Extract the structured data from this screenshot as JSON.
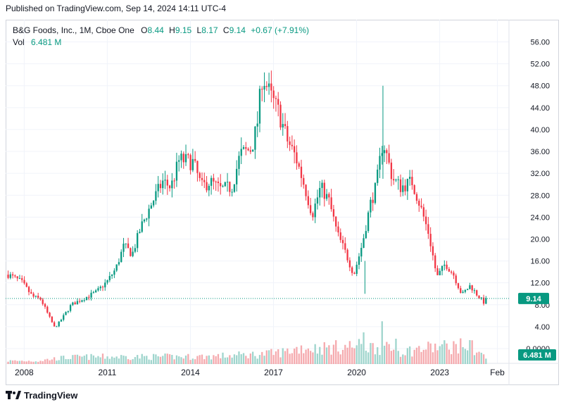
{
  "header": {
    "published": "Published on TradingView.com, Sep 14, 2024 14:11 UTC-4"
  },
  "legend": {
    "name": "B&G Foods, Inc., 1M, Cboe One",
    "o_label": "O",
    "o_value": "8.44",
    "h_label": "H",
    "h_value": "9.15",
    "l_label": "L",
    "l_value": "8.17",
    "c_label": "C",
    "c_value": "9.14",
    "change": "+0.67 (+7.91%)",
    "vol_label": "Vol",
    "vol_value": "6.481 M"
  },
  "footer": {
    "brand": "TradingView"
  },
  "colors": {
    "up": "#089981",
    "down": "#f23645",
    "vol_up": "#9fd5cd",
    "vol_down": "#f5aaae",
    "grid": "#f0f3fa",
    "axis_text": "#131722"
  },
  "chart_data": {
    "type": "candlestick",
    "title": "B&G Foods, Inc., 1M, Cboe One",
    "y_ticks": [
      "0.0000",
      "4.00",
      "8.00",
      "12.00",
      "16.00",
      "20.00",
      "24.00",
      "28.00",
      "32.00",
      "36.00",
      "40.00",
      "44.00",
      "48.00",
      "52.00",
      "56.00"
    ],
    "x_ticks": [
      "2008",
      "2011",
      "2014",
      "2017",
      "2020",
      "2023",
      "Feb"
    ],
    "x_tick_years": [
      2008,
      2011,
      2014,
      2017,
      2020,
      2023,
      2025.08
    ],
    "last_price_label": "9.14",
    "last_volume_label": "6.481 M",
    "ylim": [
      0,
      58
    ],
    "xlim": [
      2007.33,
      2025.5
    ],
    "grid": true,
    "price_anchors": [
      [
        2007.42,
        13.5
      ],
      [
        2007.9,
        12.2
      ],
      [
        2008.3,
        9.5
      ],
      [
        2008.6,
        9.0
      ],
      [
        2008.9,
        5.8
      ],
      [
        2009.1,
        3.8
      ],
      [
        2009.3,
        5.0
      ],
      [
        2009.7,
        8.0
      ],
      [
        2010.2,
        9.3
      ],
      [
        2010.6,
        10.3
      ],
      [
        2011.0,
        12.3
      ],
      [
        2011.3,
        14.5
      ],
      [
        2011.6,
        18.8
      ],
      [
        2011.9,
        17.2
      ],
      [
        2012.2,
        22.0
      ],
      [
        2012.6,
        26.5
      ],
      [
        2013.0,
        30.5
      ],
      [
        2013.3,
        29.5
      ],
      [
        2013.6,
        34.5
      ],
      [
        2014.1,
        34.0
      ],
      [
        2014.4,
        29.5
      ],
      [
        2014.7,
        30.5
      ],
      [
        2015.1,
        29.0
      ],
      [
        2015.5,
        29.5
      ],
      [
        2015.8,
        35.5
      ],
      [
        2016.2,
        36.5
      ],
      [
        2016.4,
        40.5
      ],
      [
        2016.6,
        50.0
      ],
      [
        2016.9,
        46.0
      ],
      [
        2017.2,
        43.0
      ],
      [
        2017.5,
        38.0
      ],
      [
        2017.8,
        35.0
      ],
      [
        2018.1,
        30.0
      ],
      [
        2018.4,
        24.5
      ],
      [
        2018.7,
        29.5
      ],
      [
        2019.0,
        27.0
      ],
      [
        2019.3,
        21.0
      ],
      [
        2019.6,
        17.5
      ],
      [
        2019.9,
        13.5
      ],
      [
        2020.2,
        19.0
      ],
      [
        2020.5,
        26.5
      ],
      [
        2020.7,
        29.5
      ],
      [
        2020.95,
        38.0
      ],
      [
        2021.3,
        31.0
      ],
      [
        2021.6,
        29.5
      ],
      [
        2022.0,
        30.5
      ],
      [
        2022.3,
        26.0
      ],
      [
        2022.6,
        21.0
      ],
      [
        2022.9,
        13.0
      ],
      [
        2023.2,
        15.5
      ],
      [
        2023.5,
        13.5
      ],
      [
        2023.8,
        9.8
      ],
      [
        2024.1,
        11.5
      ],
      [
        2024.4,
        9.5
      ],
      [
        2024.6,
        8.4
      ],
      [
        2024.71,
        9.14
      ]
    ],
    "volume_anchors": [
      [
        2007.42,
        1.0
      ],
      [
        2008.5,
        1.0
      ],
      [
        2009.0,
        1.6
      ],
      [
        2009.5,
        2.0
      ],
      [
        2010.0,
        2.2
      ],
      [
        2011.0,
        2.3
      ],
      [
        2012.0,
        2.3
      ],
      [
        2013.0,
        2.3
      ],
      [
        2014.0,
        2.3
      ],
      [
        2015.0,
        2.5
      ],
      [
        2016.0,
        2.9
      ],
      [
        2016.6,
        3.1
      ],
      [
        2017.0,
        3.4
      ],
      [
        2017.5,
        4.0
      ],
      [
        2018.0,
        5.2
      ],
      [
        2018.5,
        5.0
      ],
      [
        2019.0,
        5.1
      ],
      [
        2019.5,
        5.4
      ],
      [
        2020.0,
        5.7
      ],
      [
        2020.5,
        5.4
      ],
      [
        2021.0,
        5.0
      ],
      [
        2021.5,
        4.0
      ],
      [
        2022.0,
        4.3
      ],
      [
        2022.5,
        5.0
      ],
      [
        2023.0,
        5.4
      ],
      [
        2023.5,
        5.6
      ],
      [
        2024.0,
        5.8
      ],
      [
        2024.4,
        4.0
      ],
      [
        2024.71,
        1.6
      ]
    ],
    "volume_spikes": [
      [
        2020.25,
        10.0
      ],
      [
        2020.9,
        13.5
      ],
      [
        2021.4,
        8.0
      ],
      [
        2022.7,
        6.5
      ],
      [
        2024.2,
        7.5
      ]
    ],
    "volume_scale_max_millions": 16
  }
}
